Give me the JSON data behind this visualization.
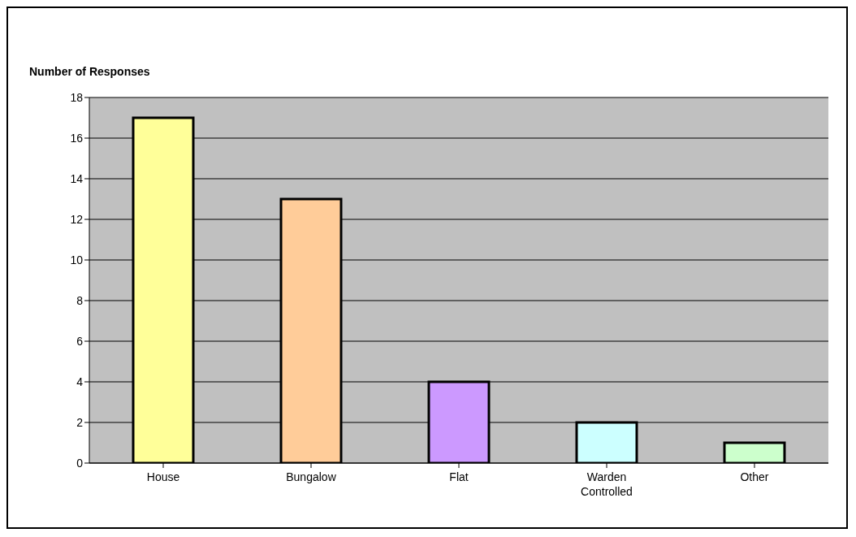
{
  "chart_data": {
    "type": "bar",
    "ylabel": "Number of Responses",
    "categories": [
      "House",
      "Bungalow",
      "Flat",
      "Warden Controlled",
      "Other"
    ],
    "values": [
      17,
      13,
      4,
      2,
      1
    ],
    "colors": [
      "#ffff99",
      "#ffcc99",
      "#cc99ff",
      "#ccffff",
      "#ccffcc"
    ],
    "ylim": [
      0,
      18
    ],
    "yticks": [
      0,
      2,
      4,
      6,
      8,
      10,
      12,
      14,
      16,
      18
    ],
    "grid": "y",
    "legend": false
  }
}
